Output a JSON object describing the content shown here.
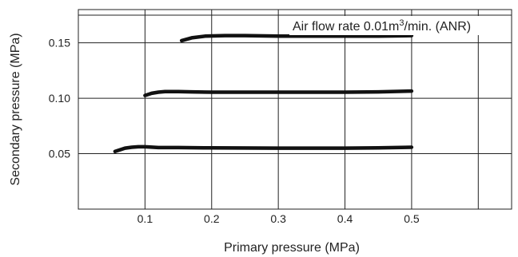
{
  "chart_data": {
    "type": "line",
    "xlabel": "Primary pressure (MPa)",
    "ylabel": "Secondary pressure (MPa)",
    "xlim": [
      0.0,
      0.65
    ],
    "ylim": [
      0.0,
      0.18
    ],
    "x_ticks": [
      {
        "value": 0.1,
        "label": "0.1"
      },
      {
        "value": 0.2,
        "label": "0.2"
      },
      {
        "value": 0.3,
        "label": "0.3"
      },
      {
        "value": 0.4,
        "label": "0.4"
      },
      {
        "value": 0.5,
        "label": "0.5"
      }
    ],
    "y_ticks": [
      {
        "value": 0.05,
        "label": "0.05"
      },
      {
        "value": 0.1,
        "label": "0.10"
      },
      {
        "value": 0.15,
        "label": "0.15"
      }
    ],
    "grid": true,
    "annotation": {
      "text_before": "Air flow rate 0.01m",
      "superscript": "3",
      "text_after": "/min. (ANR)",
      "placement": "top-right"
    },
    "series": [
      {
        "x": [
          0.055,
          0.07,
          0.08,
          0.09,
          0.1,
          0.12,
          0.15,
          0.2,
          0.3,
          0.4,
          0.45,
          0.5
        ],
        "y": [
          0.052,
          0.055,
          0.0558,
          0.0562,
          0.0562,
          0.0555,
          0.0555,
          0.0552,
          0.055,
          0.055,
          0.0552,
          0.0558
        ],
        "color": "#111111"
      },
      {
        "x": [
          0.1,
          0.11,
          0.12,
          0.13,
          0.15,
          0.17,
          0.2,
          0.3,
          0.4,
          0.45,
          0.5
        ],
        "y": [
          0.1025,
          0.1045,
          0.1055,
          0.106,
          0.106,
          0.1058,
          0.1055,
          0.1055,
          0.1055,
          0.1058,
          0.1065
        ],
        "color": "#111111"
      },
      {
        "x": [
          0.155,
          0.17,
          0.19,
          0.22,
          0.25,
          0.3,
          0.35,
          0.4,
          0.45,
          0.5
        ],
        "y": [
          0.152,
          0.1545,
          0.156,
          0.1565,
          0.1565,
          0.156,
          0.156,
          0.156,
          0.156,
          0.1565
        ],
        "color": "#111111"
      }
    ]
  }
}
